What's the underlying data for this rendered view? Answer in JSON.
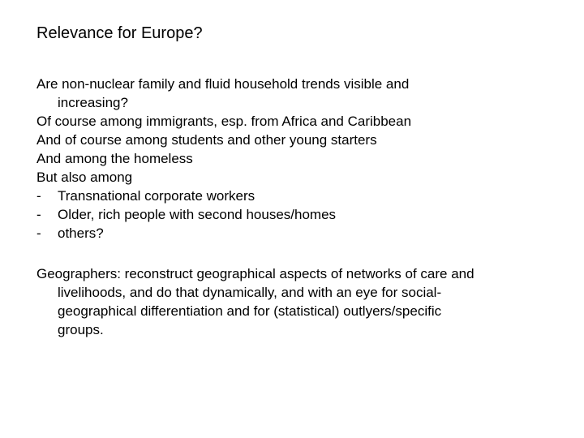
{
  "title": "Relevance for Europe?",
  "q_line1": "Are non-nuclear family and fluid household trends visible and",
  "q_line2": "increasing?",
  "line_immigrants": "Of course among immigrants, esp. from Africa and Caribbean",
  "line_students": "And of course among students and other young starters",
  "line_homeless": "And among the homeless",
  "line_butalso": "But also among",
  "bullet_dash": "-",
  "bullet1": "Transnational corporate workers",
  "bullet2": "Older, rich people with second houses/homes",
  "bullet3": "others?",
  "geo_line1": "Geographers: reconstruct geographical aspects of networks of care and",
  "geo_line2": "livelihoods, and do that dynamically, and with an eye for social-",
  "geo_line3": "geographical differentiation and for (statistical) outlyers/specific",
  "geo_line4": "groups."
}
